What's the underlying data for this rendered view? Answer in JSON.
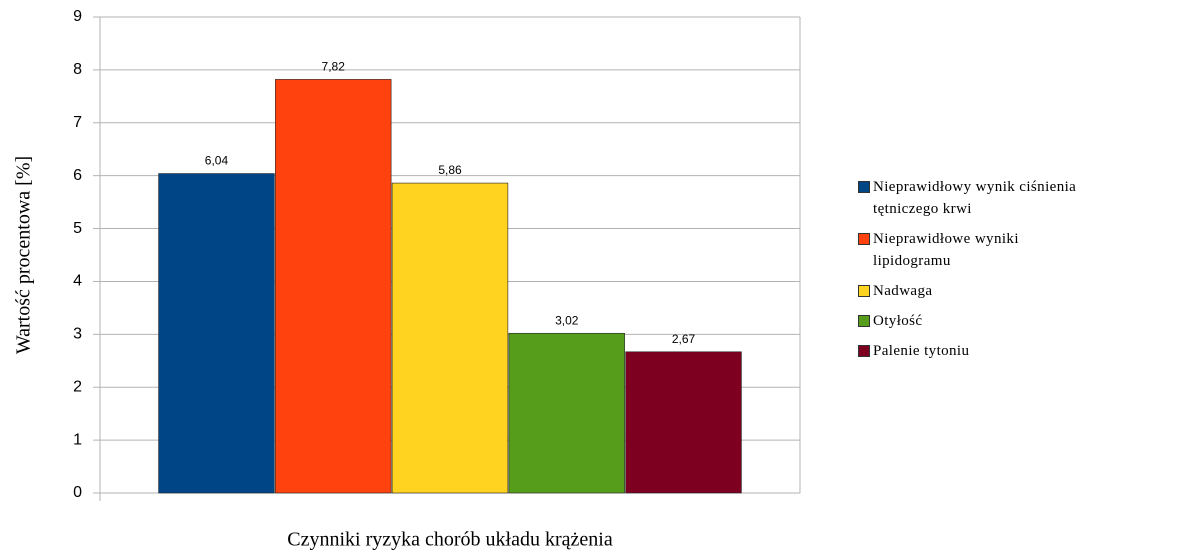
{
  "chart_data": {
    "type": "bar",
    "y_label": "Wartość procentowa [%]",
    "x_label": "Czynniki ryzyka chorób układu krążenia",
    "categories": [
      null
    ],
    "series": [
      {
        "name": "Nieprawidłowy wynik ciśnienia tętniczego krwi",
        "color": "#004586",
        "values": [
          6.04
        ],
        "value_labels": [
          "6,04"
        ]
      },
      {
        "name": "Nieprawidłowe wyniki lipidogramu",
        "color": "#ff420e",
        "values": [
          7.82
        ],
        "value_labels": [
          "7,82"
        ]
      },
      {
        "name": "Nadwaga",
        "color": "#ffd320",
        "values": [
          5.86
        ],
        "value_labels": [
          "5,86"
        ]
      },
      {
        "name": "Otyłość",
        "color": "#579d1c",
        "values": [
          3.02
        ],
        "value_labels": [
          "3,02"
        ]
      },
      {
        "name": "Palenie tytoniu",
        "color": "#7e0021",
        "values": [
          2.67
        ],
        "value_labels": [
          "2,67"
        ]
      }
    ],
    "ylim": [
      0,
      9
    ],
    "yticks": [
      0,
      1,
      2,
      3,
      4,
      5,
      6,
      7,
      8,
      9
    ],
    "grid": true,
    "legend": "right"
  }
}
